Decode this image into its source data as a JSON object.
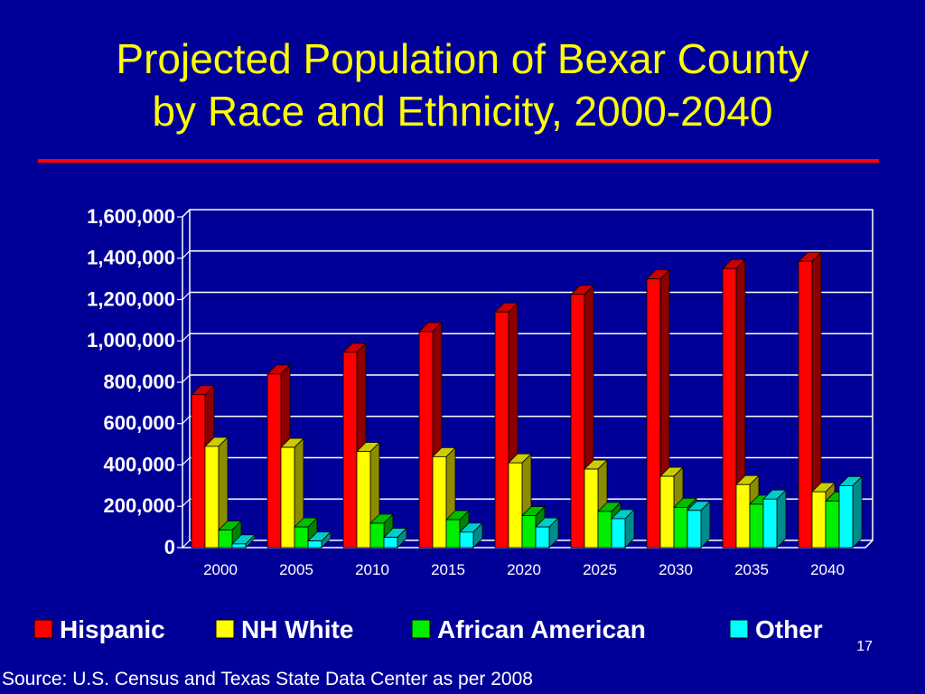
{
  "slide": {
    "title_line1": "Projected Population of Bexar County",
    "title_line2": "by Race and Ethnicity, 2000-2040",
    "page_number": "17",
    "source": "Source: U.S. Census and Texas State Data Center as per 2008",
    "colors": {
      "background": "#000099",
      "title": "#FFFF00",
      "rule": "#FF0000"
    }
  },
  "chart_data": {
    "type": "bar",
    "categories": [
      "2000",
      "2005",
      "2010",
      "2015",
      "2020",
      "2025",
      "2030",
      "2035",
      "2040"
    ],
    "series": [
      {
        "name": "Hispanic",
        "color": "#FF0000",
        "values": [
          740000,
          840000,
          945000,
          1045000,
          1140000,
          1225000,
          1300000,
          1350000,
          1385000
        ]
      },
      {
        "name": "NH White",
        "color": "#FFFF00",
        "values": [
          490000,
          485000,
          465000,
          440000,
          410000,
          380000,
          345000,
          305000,
          270000
        ]
      },
      {
        "name": "African American",
        "color": "#00EE00",
        "values": [
          85000,
          100000,
          118000,
          135000,
          155000,
          175000,
          195000,
          210000,
          225000
        ]
      },
      {
        "name": "Other",
        "color": "#00FFFF",
        "values": [
          18000,
          32000,
          50000,
          75000,
          100000,
          140000,
          180000,
          235000,
          300000
        ]
      }
    ],
    "yticks": [
      "0",
      "200,000",
      "400,000",
      "600,000",
      "800,000",
      "1,000,000",
      "1,200,000",
      "1,400,000",
      "1,600,000"
    ],
    "ylim": [
      0,
      1600000
    ],
    "grid": true,
    "legend_position": "bottom",
    "three_d": true
  }
}
